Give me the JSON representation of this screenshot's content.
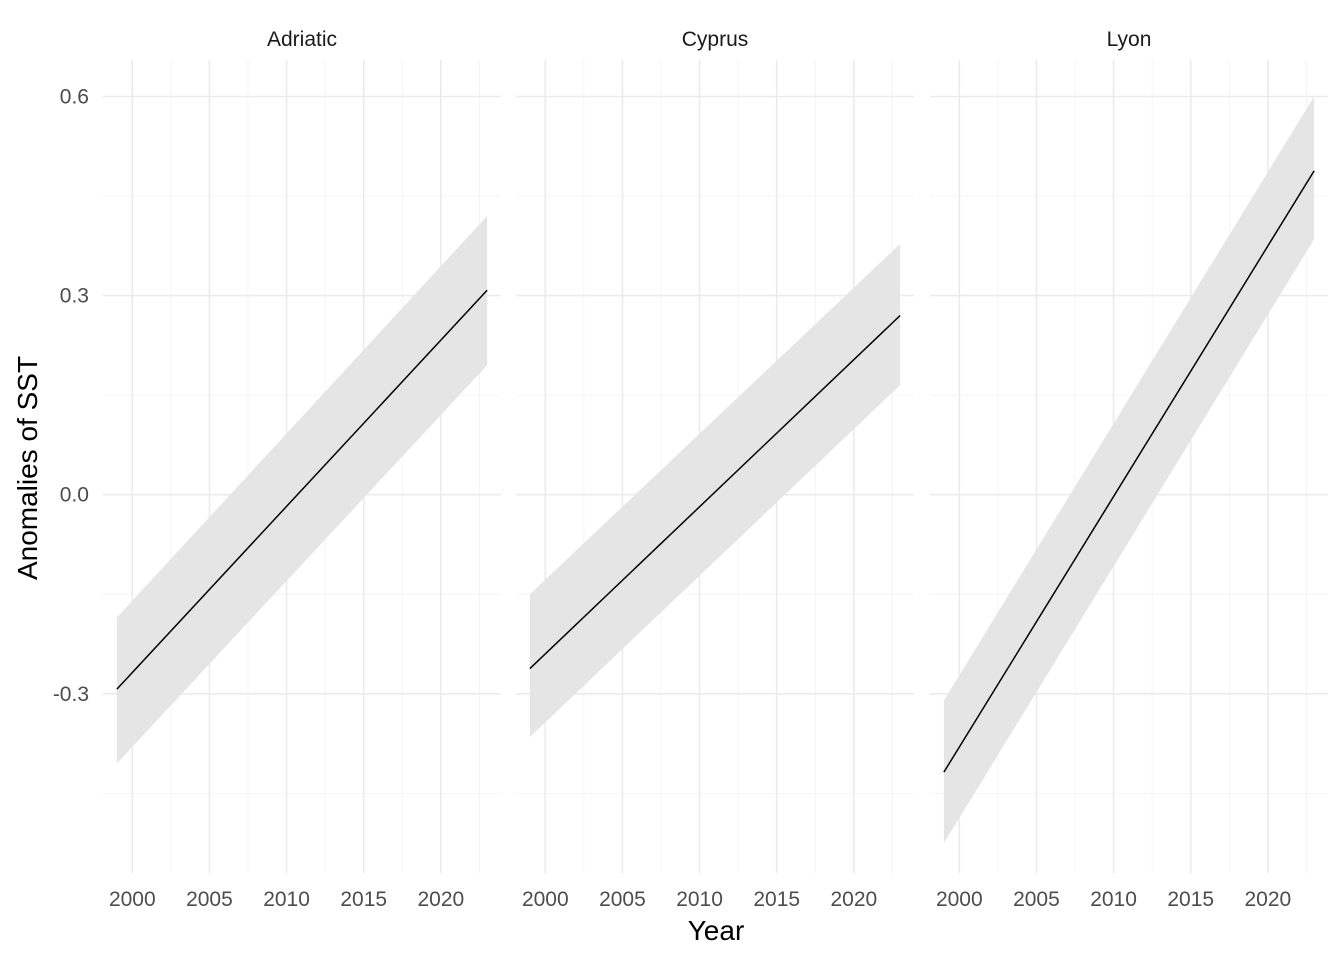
{
  "chart_data": {
    "type": "line",
    "layout": "facet_wrap",
    "xlabel": "Year",
    "ylabel": "Anomalies of SST",
    "xlim": [
      1998.1,
      2023.9
    ],
    "ylim": [
      -0.57,
      0.655
    ],
    "x_ticks": [
      2000,
      2005,
      2010,
      2015,
      2020
    ],
    "y_ticks": [
      0.6,
      0.3,
      0.0,
      -0.3
    ],
    "y_tick_labels": [
      "0.6",
      "0.3",
      "0.0",
      "-0.3"
    ],
    "grid": true,
    "theme": "minimal",
    "colors": {
      "line": "#000000",
      "ribbon": "#e5e5e5",
      "grid": "#ebebeb"
    },
    "panels": [
      {
        "name": "Adriatic",
        "x": [
          1999,
          2023
        ],
        "fit": [
          -0.293,
          0.308
        ],
        "lower": [
          -0.405,
          0.195
        ],
        "upper": [
          -0.185,
          0.42
        ]
      },
      {
        "name": "Cyprus",
        "x": [
          1999,
          2023
        ],
        "fit": [
          -0.262,
          0.27
        ],
        "lower": [
          -0.365,
          0.165
        ],
        "upper": [
          -0.15,
          0.378
        ]
      },
      {
        "name": "Lyon",
        "x": [
          1999,
          2023
        ],
        "fit": [
          -0.418,
          0.488
        ],
        "lower": [
          -0.525,
          0.385
        ],
        "upper": [
          -0.31,
          0.6
        ]
      }
    ]
  }
}
